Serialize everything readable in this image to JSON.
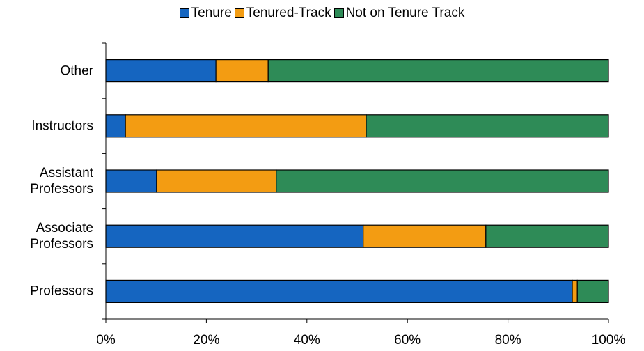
{
  "chart_data": {
    "type": "stacked-barh",
    "categories": [
      "Other",
      "Instructors",
      "Assistant Professors",
      "Associate Professors",
      "Professors"
    ],
    "series": [
      {
        "name": "Tenure",
        "color": "#1565c0",
        "values": [
          21.9,
          3.9,
          10.1,
          51.2,
          92.8
        ]
      },
      {
        "name": "Tenured-Track",
        "color": "#f39c12",
        "values": [
          10.4,
          47.9,
          23.8,
          24.4,
          1.0
        ]
      },
      {
        "name": "Not on Tenure Track",
        "color": "#2e8b57",
        "values": [
          67.7,
          48.2,
          66.1,
          24.4,
          6.2
        ]
      }
    ],
    "xlim": [
      0,
      100
    ],
    "xticks": [
      {
        "value": 0,
        "label": "0%"
      },
      {
        "value": 20,
        "label": "20%"
      },
      {
        "value": 40,
        "label": "40%"
      },
      {
        "value": 60,
        "label": "60%"
      },
      {
        "value": 80,
        "label": "80%"
      },
      {
        "value": 100,
        "label": "100%"
      }
    ],
    "legend": "top"
  }
}
